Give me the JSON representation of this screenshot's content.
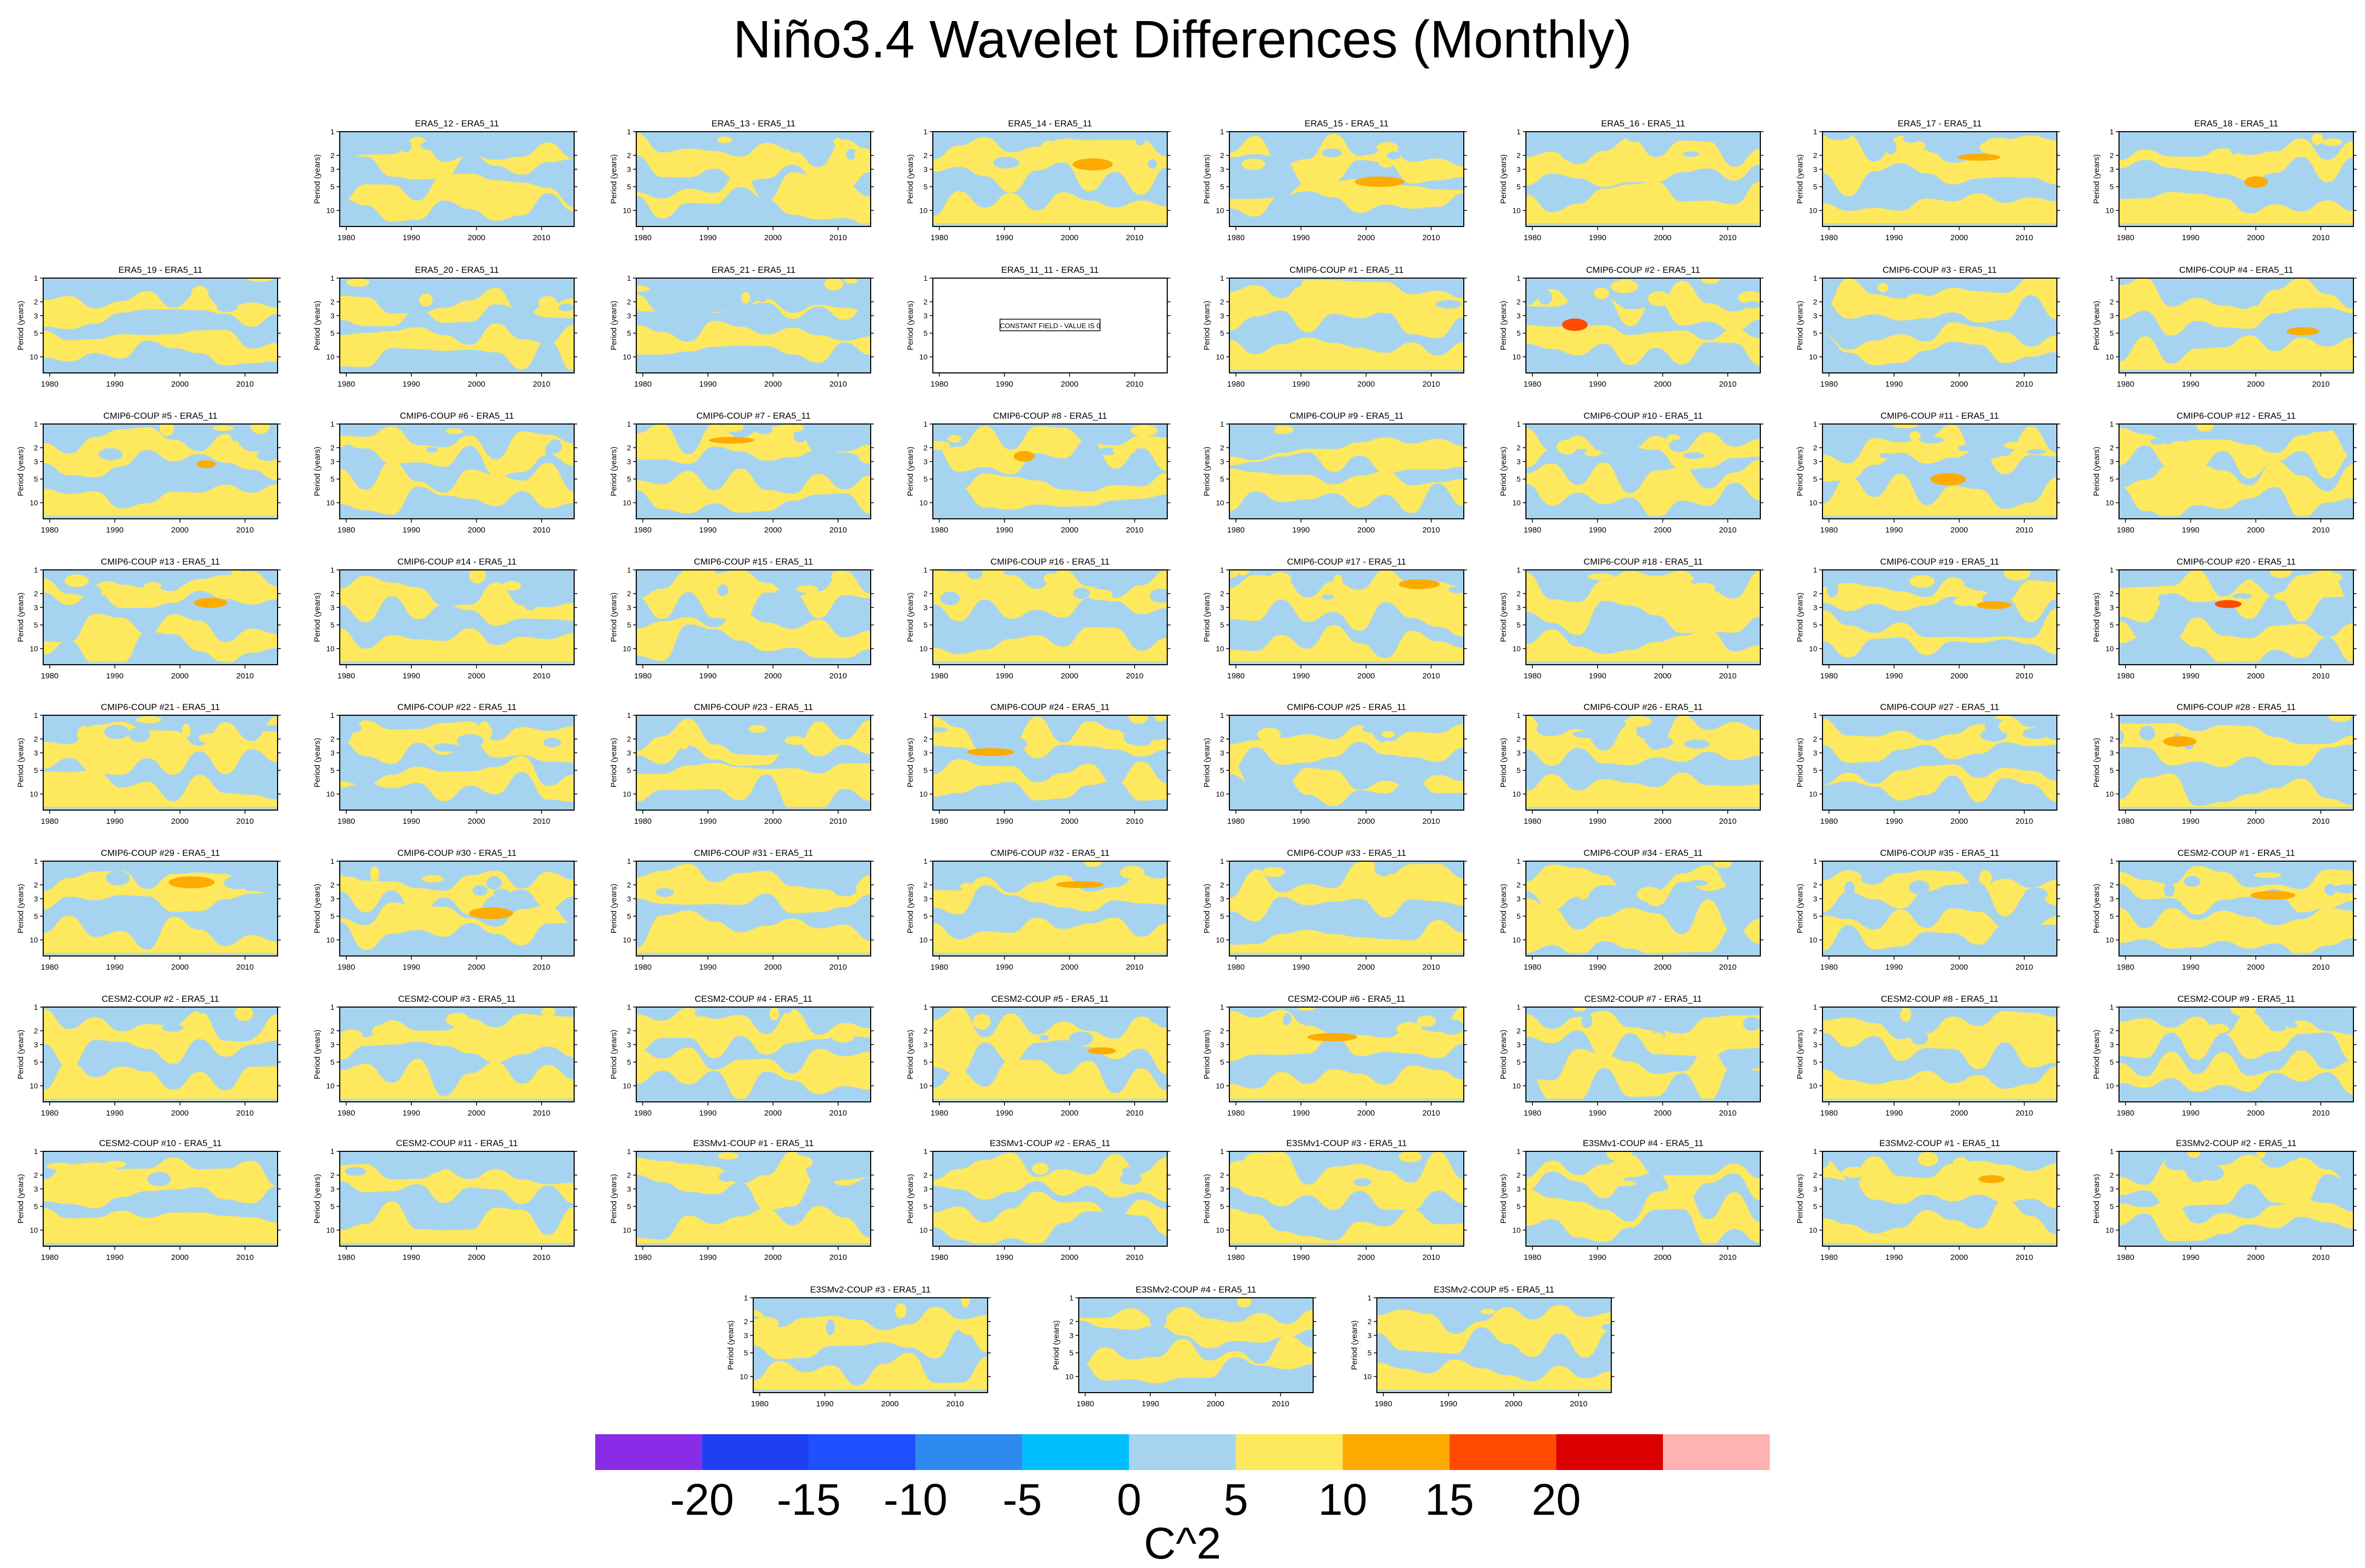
{
  "chart_data": {
    "type": "heatmap",
    "title": "Niño3.4 Wavelet Differences (Monthly)",
    "panel_ylabel": "Period (years)",
    "x_ticks": [
      1980,
      1990,
      2000,
      2010
    ],
    "y_ticks": [
      1,
      2,
      3,
      5,
      10
    ],
    "xlim": [
      1979,
      2015
    ],
    "ylim": [
      1,
      16
    ],
    "panels": [
      {
        "title": "ERA5_12 - ERA5_11"
      },
      {
        "title": "ERA5_13 - ERA5_11"
      },
      {
        "title": "ERA5_14 - ERA5_11"
      },
      {
        "title": "ERA5_15 - ERA5_11"
      },
      {
        "title": "ERA5_16 - ERA5_11"
      },
      {
        "title": "ERA5_17 - ERA5_11"
      },
      {
        "title": "ERA5_18 - ERA5_11"
      },
      {
        "title": "ERA5_19 - ERA5_11"
      },
      {
        "title": "ERA5_20 - ERA5_11"
      },
      {
        "title": "ERA5_21 - ERA5_11"
      },
      {
        "title": "ERA5_11_11 - ERA5_11",
        "note": "CONSTANT FIELD - VALUE IS 0"
      },
      {
        "title": "CMIP6-COUP  #1 - ERA5_11"
      },
      {
        "title": "CMIP6-COUP  #2 - ERA5_11"
      },
      {
        "title": "CMIP6-COUP  #3 - ERA5_11"
      },
      {
        "title": "CMIP6-COUP  #4 - ERA5_11"
      },
      {
        "title": "CMIP6-COUP  #5 - ERA5_11"
      },
      {
        "title": "CMIP6-COUP  #6 - ERA5_11"
      },
      {
        "title": "CMIP6-COUP  #7 - ERA5_11"
      },
      {
        "title": "CMIP6-COUP  #8 - ERA5_11"
      },
      {
        "title": "CMIP6-COUP  #9 - ERA5_11"
      },
      {
        "title": "CMIP6-COUP  #10 - ERA5_11"
      },
      {
        "title": "CMIP6-COUP  #11 - ERA5_11"
      },
      {
        "title": "CMIP6-COUP  #12 - ERA5_11"
      },
      {
        "title": "CMIP6-COUP  #13 - ERA5_11"
      },
      {
        "title": "CMIP6-COUP  #14 - ERA5_11"
      },
      {
        "title": "CMIP6-COUP  #15 - ERA5_11"
      },
      {
        "title": "CMIP6-COUP  #16 - ERA5_11"
      },
      {
        "title": "CMIP6-COUP  #17 - ERA5_11"
      },
      {
        "title": "CMIP6-COUP  #18 - ERA5_11"
      },
      {
        "title": "CMIP6-COUP  #19 - ERA5_11"
      },
      {
        "title": "CMIP6-COUP  #20 - ERA5_11"
      },
      {
        "title": "CMIP6-COUP  #21 - ERA5_11"
      },
      {
        "title": "CMIP6-COUP  #22 - ERA5_11"
      },
      {
        "title": "CMIP6-COUP  #23 - ERA5_11"
      },
      {
        "title": "CMIP6-COUP  #24 - ERA5_11"
      },
      {
        "title": "CMIP6-COUP  #25 - ERA5_11"
      },
      {
        "title": "CMIP6-COUP  #26 - ERA5_11"
      },
      {
        "title": "CMIP6-COUP  #27 - ERA5_11"
      },
      {
        "title": "CMIP6-COUP  #28 - ERA5_11"
      },
      {
        "title": "CMIP6-COUP  #29 - ERA5_11"
      },
      {
        "title": "CMIP6-COUP  #30 - ERA5_11"
      },
      {
        "title": "CMIP6-COUP  #31 - ERA5_11"
      },
      {
        "title": "CMIP6-COUP  #32 - ERA5_11"
      },
      {
        "title": "CMIP6-COUP  #33 - ERA5_11"
      },
      {
        "title": "CMIP6-COUP  #34 - ERA5_11"
      },
      {
        "title": "CMIP6-COUP  #35 - ERA5_11"
      },
      {
        "title": "CESM2-COUP  #1 - ERA5_11"
      },
      {
        "title": "CESM2-COUP  #2 - ERA5_11"
      },
      {
        "title": "CESM2-COUP  #3 - ERA5_11"
      },
      {
        "title": "CESM2-COUP  #4 - ERA5_11"
      },
      {
        "title": "CESM2-COUP  #5 - ERA5_11"
      },
      {
        "title": "CESM2-COUP  #6 - ERA5_11"
      },
      {
        "title": "CESM2-COUP  #7 - ERA5_11"
      },
      {
        "title": "CESM2-COUP  #8 - ERA5_11"
      },
      {
        "title": "CESM2-COUP  #9 - ERA5_11"
      },
      {
        "title": "CESM2-COUP  #10 - ERA5_11"
      },
      {
        "title": "CESM2-COUP  #11 - ERA5_11"
      },
      {
        "title": "E3SMv1-COUP  #1 - ERA5_11"
      },
      {
        "title": "E3SMv1-COUP  #2 - ERA5_11"
      },
      {
        "title": "E3SMv1-COUP  #3 - ERA5_11"
      },
      {
        "title": "E3SMv1-COUP  #4 - ERA5_11"
      },
      {
        "title": "E3SMv2-COUP  #1 - ERA5_11"
      },
      {
        "title": "E3SMv2-COUP  #2 - ERA5_11"
      },
      {
        "title": "E3SMv2-COUP  #3 - ERA5_11"
      },
      {
        "title": "E3SMv2-COUP  #4 - ERA5_11"
      },
      {
        "title": "E3SMv2-COUP  #5 - ERA5_11"
      }
    ],
    "colorbar": {
      "label": "C^2",
      "tick_labels": [
        "-20",
        "-15",
        "-10",
        "-5",
        "0",
        "5",
        "10",
        "15",
        "20"
      ],
      "colors": [
        "#8a2be8",
        "#1e3ff0",
        "#1e50ff",
        "#2e8aef",
        "#00bfff",
        "#a6d4f0",
        "#fde85e",
        "#fdab00",
        "#ff4a00",
        "#dc0000",
        "#ffb2b2"
      ]
    }
  }
}
